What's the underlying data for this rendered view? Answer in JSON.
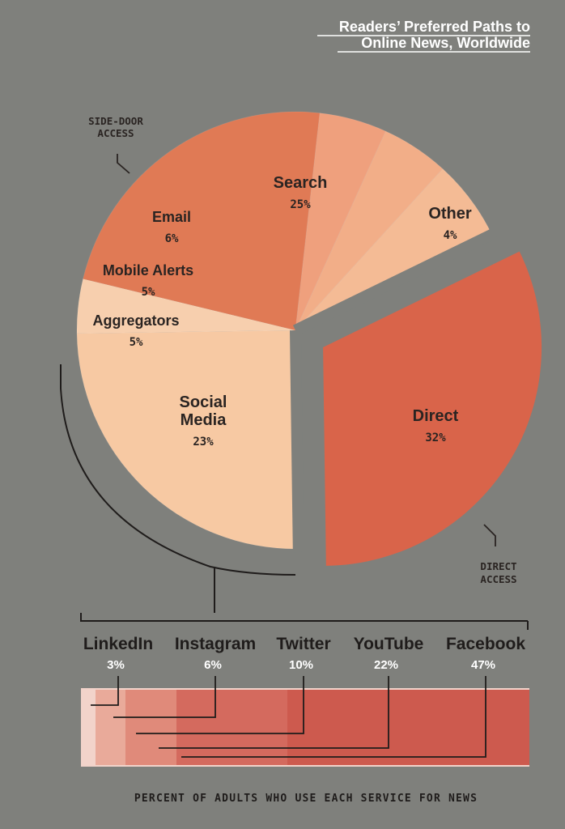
{
  "title": [
    "Readers’ Preferred Paths to",
    "Online News, Worldwide"
  ],
  "colors": {
    "background": "#7f807c",
    "search": "#f7c9a3",
    "other": "#f7cfae",
    "direct": "#d9644a",
    "social": "#e07a55",
    "aggregators": "#efa07d",
    "mobile_alerts": "#f2ae88",
    "email": "#f4bb95",
    "bar_linkedin": "#f2d3ca",
    "bar_instagram": "#e9aa9a",
    "bar_twitter": "#e08a7a",
    "bar_youtube": "#d46a5e",
    "bar_facebook": "#cd5a4e"
  },
  "annotations": {
    "side_door": [
      "SIDE-DOOR",
      "ACCESS"
    ],
    "direct_access": [
      "DIRECT",
      "ACCESS"
    ]
  },
  "chart_data": [
    {
      "type": "pie",
      "labels": [
        "Direct",
        "Search",
        "Other",
        "Social Media",
        "Aggregators",
        "Mobile Alerts",
        "Email"
      ],
      "values": [
        32,
        25,
        4,
        23,
        5,
        5,
        6
      ],
      "value_labels": [
        "32%",
        "25%",
        "4%",
        "23%",
        "5%",
        "5%",
        "6%"
      ],
      "label_lines": {
        "Social Media": [
          "Social",
          "Media"
        ]
      },
      "exploded": [
        "Direct"
      ],
      "groups": {
        "SIDE-DOOR ACCESS": [
          "Search",
          "Other",
          "Social Media",
          "Aggregators",
          "Mobile Alerts",
          "Email"
        ],
        "DIRECT ACCESS": [
          "Direct"
        ]
      }
    },
    {
      "type": "bar",
      "orientation": "horizontal-stacked-cumulative",
      "categories": [
        "LinkedIn",
        "Instagram",
        "Twitter",
        "YouTube",
        "Facebook"
      ],
      "values": [
        3,
        6,
        10,
        22,
        47
      ],
      "value_labels": [
        "3%",
        "6%",
        "10%",
        "22%",
        "47%"
      ],
      "xlabel": "PERCENT OF ADULTS WHO USE EACH SERVICE FOR NEWS"
    }
  ]
}
